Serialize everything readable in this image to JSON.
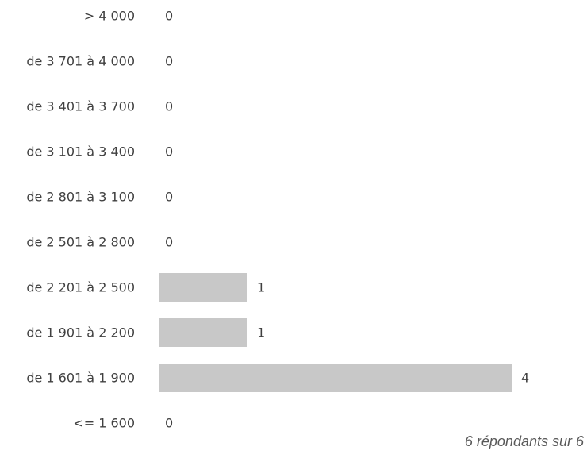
{
  "chart_data": {
    "type": "bar",
    "orientation": "horizontal",
    "categories": [
      "> 4 000",
      "de 3 701 à 4 000",
      "de 3 401 à 3 700",
      "de 3 101 à 3 400",
      "de 2 801 à 3 100",
      "de 2 501 à 2 800",
      "de 2 201 à 2 500",
      "de 1 901 à 2 200",
      "de 1 601 à 1 900",
      "<= 1 600"
    ],
    "values": [
      0,
      0,
      0,
      0,
      0,
      0,
      1,
      1,
      4,
      0
    ],
    "xlim": [
      0,
      4
    ],
    "grid": false,
    "legend": "none",
    "bar_color": "#c8c8c8",
    "text_color": "#404040"
  },
  "footnote": "6 répondants sur 6"
}
